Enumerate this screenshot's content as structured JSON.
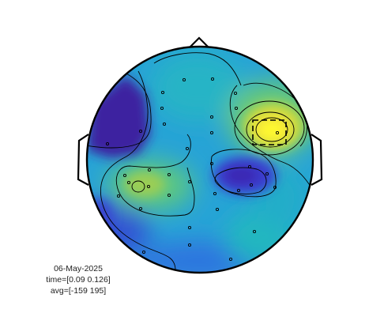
{
  "info": {
    "date": "06-May-2025",
    "time_window": "time=[0.09 0.126]",
    "color_range": "avg=[-159 195]"
  },
  "colors": {
    "colormap": [
      "#3d1f9e",
      "#3a4fd6",
      "#2f87e4",
      "#1fb2c9",
      "#38c79a",
      "#93cf55",
      "#f0e03a",
      "#fefa2e"
    ],
    "head_outline": "#000000",
    "contour_line": "#000000",
    "electrode": "#000000",
    "highlight_box": "#000000"
  },
  "annotations": {
    "highlight_box_style": "dashed"
  }
}
